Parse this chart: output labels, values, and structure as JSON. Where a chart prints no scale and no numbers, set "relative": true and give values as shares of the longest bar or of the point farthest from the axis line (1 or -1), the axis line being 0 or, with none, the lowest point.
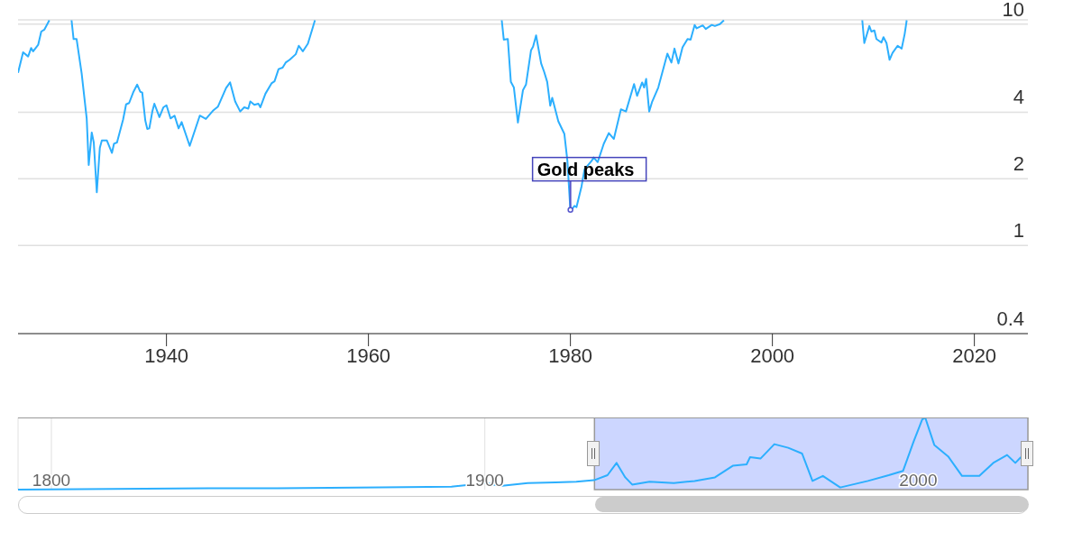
{
  "chart_data": [
    {
      "type": "line",
      "x": [
        1925.3,
        1925.8,
        1926.3,
        1926.6,
        1926.8,
        1927.3,
        1927.6,
        1927.9,
        1928.4,
        1929.5,
        1930.6,
        1930.8,
        1931.1,
        1931.6,
        1932.1,
        1932.3,
        1932.6,
        1932.8,
        1933.1,
        1933.4,
        1933.6,
        1934.1,
        1934.6,
        1934.8,
        1935.1,
        1935.7,
        1936.0,
        1936.3,
        1936.7,
        1937.1,
        1937.4,
        1937.6,
        1937.9,
        1938.1,
        1938.3,
        1938.6,
        1938.8,
        1939.3,
        1939.7,
        1940.0,
        1940.4,
        1940.8,
        1941.2,
        1941.5,
        1942.3,
        1943.3,
        1943.9,
        1944.6,
        1945.1,
        1945.5,
        1945.9,
        1946.3,
        1946.8,
        1947.3,
        1947.7,
        1948.1,
        1948.3,
        1948.7,
        1949.1,
        1949.3,
        1949.8,
        1950.4,
        1950.7,
        1951.1,
        1951.5,
        1951.8,
        1952.2,
        1952.8,
        1953.1,
        1953.5,
        1954.0,
        1954.4,
        1954.7,
        1964.0,
        1973.2,
        1973.4,
        1973.8,
        1974.1,
        1974.4,
        1974.8,
        1975.3,
        1975.6,
        1976.1,
        1976.3,
        1976.6,
        1977.1,
        1977.4,
        1977.7,
        1978.0,
        1978.2,
        1978.8,
        1979.4,
        1979.7,
        1980.0,
        1980.4,
        1980.6,
        1981.1,
        1981.4,
        1982.1,
        1982.3,
        1982.7,
        1983.3,
        1983.8,
        1984.3,
        1985.0,
        1985.5,
        1986.3,
        1986.6,
        1987.1,
        1987.3,
        1987.5,
        1987.8,
        1988.1,
        1988.7,
        1989.6,
        1990.0,
        1990.3,
        1990.7,
        1991.1,
        1991.6,
        1991.9,
        1992.3,
        1992.5,
        1993.1,
        1993.4,
        1994.0,
        1994.3,
        1994.8,
        1995.2,
        2002.0,
        2008.9,
        2009.1,
        2009.6,
        2009.8,
        2010.1,
        2010.3,
        2010.8,
        2011.0,
        2011.3,
        2011.6,
        2011.9,
        2012.4,
        2012.8,
        2013.1,
        2013.3
      ],
      "series": [
        {
          "color": "#2caffe",
          "values": [
            6.02,
            7.46,
            7.14,
            7.8,
            7.53,
            8.07,
            9.25,
            9.43,
            10.4,
            null,
            10.4,
            8.56,
            8.56,
            5.99,
            3.75,
            2.31,
            3.24,
            2.92,
            1.74,
            2.76,
            2.98,
            2.98,
            2.62,
            2.88,
            2.92,
            3.7,
            4.34,
            4.4,
            4.91,
            5.33,
            4.95,
            4.91,
            3.67,
            3.36,
            3.38,
            4.03,
            4.37,
            3.8,
            4.21,
            4.3,
            3.75,
            3.86,
            3.38,
            3.61,
            2.82,
            3.86,
            3.73,
            4.06,
            4.24,
            4.67,
            5.14,
            5.45,
            4.47,
            4.03,
            4.21,
            4.15,
            4.47,
            4.32,
            4.37,
            4.21,
            4.85,
            5.4,
            5.52,
            6.26,
            6.36,
            6.7,
            6.9,
            7.31,
            7.98,
            7.53,
            8.15,
            9.36,
            10.4,
            null,
            10.4,
            8.51,
            8.56,
            5.48,
            5.17,
            3.59,
            5.03,
            5.33,
            7.62,
            7.91,
            8.89,
            6.64,
            6.08,
            5.48,
            4.28,
            4.64,
            3.64,
            3.19,
            2.41,
            1.43,
            1.51,
            1.49,
            1.85,
            2.21,
            2.41,
            2.5,
            2.38,
            2.88,
            3.22,
            3.03,
            4.12,
            4.03,
            5.36,
            4.74,
            5.45,
            5.17,
            5.65,
            4.03,
            4.47,
            5.17,
            7.35,
            6.7,
            7.75,
            6.64,
            7.85,
            8.56,
            8.51,
            9.91,
            9.57,
            9.86,
            9.5,
            9.91,
            9.8,
            9.99,
            10.4,
            null,
            10.4,
            8.21,
            9.8,
            9.25,
            9.36,
            8.56,
            8.25,
            8.73,
            8.21,
            6.9,
            7.41,
            7.98,
            7.75,
            9.03,
            10.4
          ]
        }
      ],
      "xlim": [
        1925.3,
        2025.3
      ],
      "xticks": [
        1940,
        1960,
        1980,
        2000,
        2020
      ],
      "ylim": [
        0.4,
        10.45
      ],
      "yticks": [
        0.4,
        1,
        2,
        4,
        10
      ],
      "log": "y",
      "grid": "y",
      "annotations": [
        {
          "text": "Gold peaks",
          "x": 1980,
          "y": 1.45
        }
      ]
    },
    {
      "type": "line",
      "x": [
        1792.3,
        1836.2,
        1852.2,
        1876.3,
        1892.3,
        1900.3,
        1903.5,
        1909.9,
        1916.3,
        1921.1,
        1925.2,
        1928.3,
        1930.4,
        1932.4,
        1934.0,
        1938.0,
        1943.6,
        1948.4,
        1953.1,
        1957.2,
        1960.4,
        1961.2,
        1963.6,
        1966.8,
        1970.0,
        1973.2,
        1975.6,
        1978.0,
        1982.0,
        1988.4,
        1993.2,
        1996.5,
        1998.9,
        2000.9,
        2001.6,
        2003.7,
        2006.9,
        2010.1,
        2014.1,
        2017.3,
        2020.5,
        2022.4,
        2023.7
      ],
      "series": [
        {
          "color": "#2caffe",
          "values": [
            0,
            0.02,
            0.02,
            0.03,
            0.04,
            0.09,
            0.05,
            0.09,
            0.1,
            0.11,
            0.13,
            0.2,
            0.37,
            0.17,
            0.07,
            0.11,
            0.09,
            0.12,
            0.17,
            0.33,
            0.35,
            0.45,
            0.43,
            0.63,
            0.58,
            0.5,
            0.12,
            0.19,
            0.03,
            0.12,
            0.2,
            0.26,
            0.66,
            0.97,
            1,
            0.62,
            0.46,
            0.19,
            0.19,
            0.37,
            0.48,
            0.37,
            0.45
          ]
        }
      ],
      "relative": true,
      "xlim": [
        1792.3,
        2025.3
      ],
      "xticks": [
        1800,
        1900,
        2000
      ],
      "grid": "x",
      "bands": [
        {
          "axis": "x",
          "from": 1925.3,
          "to": 2025.3,
          "color": "#ccd6ff"
        }
      ]
    }
  ]
}
